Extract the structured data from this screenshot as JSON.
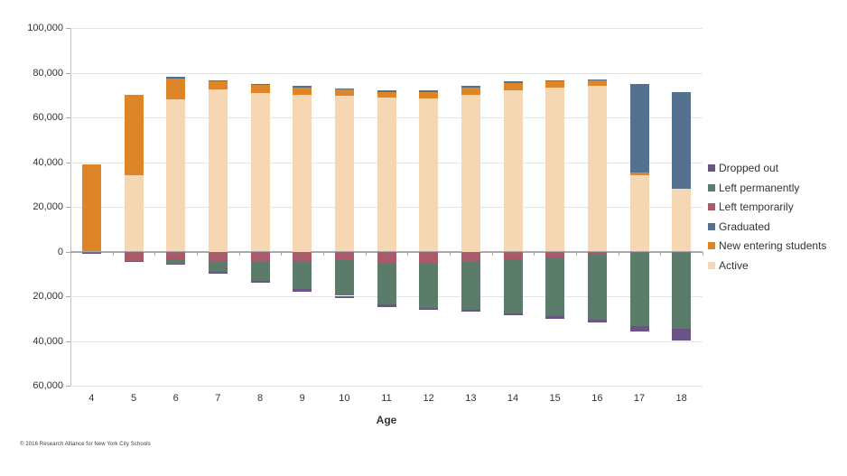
{
  "footer": {
    "attribution": "© 2016 Research Alliance for New York City Schools"
  },
  "chart_data": {
    "type": "bar",
    "stacked": true,
    "diverging": true,
    "title": "",
    "x_axis_title": "Age",
    "categories": [
      "4",
      "5",
      "6",
      "7",
      "8",
      "9",
      "10",
      "11",
      "12",
      "13",
      "14",
      "15",
      "16",
      "17",
      "18"
    ],
    "ylim": [
      -60000,
      100000
    ],
    "grid": true,
    "legend_position": "right",
    "y_ticks": [
      {
        "value": 100000,
        "label": "100,000"
      },
      {
        "value": 80000,
        "label": "80,000"
      },
      {
        "value": 60000,
        "label": "60,000"
      },
      {
        "value": 40000,
        "label": "40,000"
      },
      {
        "value": 20000,
        "label": "20,000"
      },
      {
        "value": 0,
        "label": "0"
      },
      {
        "value": -20000,
        "label": "20,000"
      },
      {
        "value": -40000,
        "label": "40,000"
      },
      {
        "value": -60000,
        "label": "60,000"
      }
    ],
    "series": [
      {
        "name": "Active",
        "key": "active",
        "direction": "up",
        "color": "#f5d8b3",
        "values": [
          0,
          34000,
          68000,
          72500,
          71000,
          70000,
          69500,
          69000,
          68500,
          70000,
          72000,
          73500,
          74000,
          34000,
          28000
        ]
      },
      {
        "name": "New entering students",
        "key": "new-entering",
        "direction": "up",
        "color": "#dd8527",
        "values": [
          39000,
          36000,
          9500,
          3500,
          3500,
          3500,
          3000,
          2500,
          3000,
          3500,
          3500,
          2500,
          2500,
          1500,
          0
        ]
      },
      {
        "name": "Graduated",
        "key": "graduated",
        "direction": "up",
        "color": "#54718f",
        "values": [
          0,
          0,
          500,
          500,
          500,
          500,
          500,
          500,
          500,
          500,
          500,
          500,
          500,
          39500,
          43500
        ]
      },
      {
        "name": "Left temporarily",
        "key": "left-temporarily",
        "direction": "down",
        "color": "#ab5a6c",
        "values": [
          600,
          4200,
          3500,
          4300,
          4500,
          4300,
          4000,
          5000,
          5000,
          4500,
          3300,
          2500,
          1200,
          500,
          500
        ]
      },
      {
        "name": "Left permanently",
        "key": "left-permanently",
        "direction": "down",
        "color": "#5b7c6b",
        "values": [
          0,
          0,
          2000,
          4800,
          8500,
          12500,
          15800,
          18800,
          20300,
          21500,
          24400,
          26500,
          29400,
          33000,
          34200
        ]
      },
      {
        "name": "Dropped out",
        "key": "dropped-out",
        "direction": "down",
        "color": "#6c5385",
        "values": [
          600,
          600,
          500,
          900,
          900,
          1000,
          900,
          900,
          900,
          1000,
          900,
          1000,
          1000,
          2400,
          5000
        ]
      }
    ],
    "legend": [
      {
        "label": "Dropped out",
        "color": "#6c5385"
      },
      {
        "label": "Left permanently",
        "color": "#5b7c6b"
      },
      {
        "label": "Left temporarily",
        "color": "#ab5a6c"
      },
      {
        "label": "Graduated",
        "color": "#54718f"
      },
      {
        "label": "New entering students",
        "color": "#dd8527"
      },
      {
        "label": "Active",
        "color": "#f5d8b3"
      }
    ]
  }
}
